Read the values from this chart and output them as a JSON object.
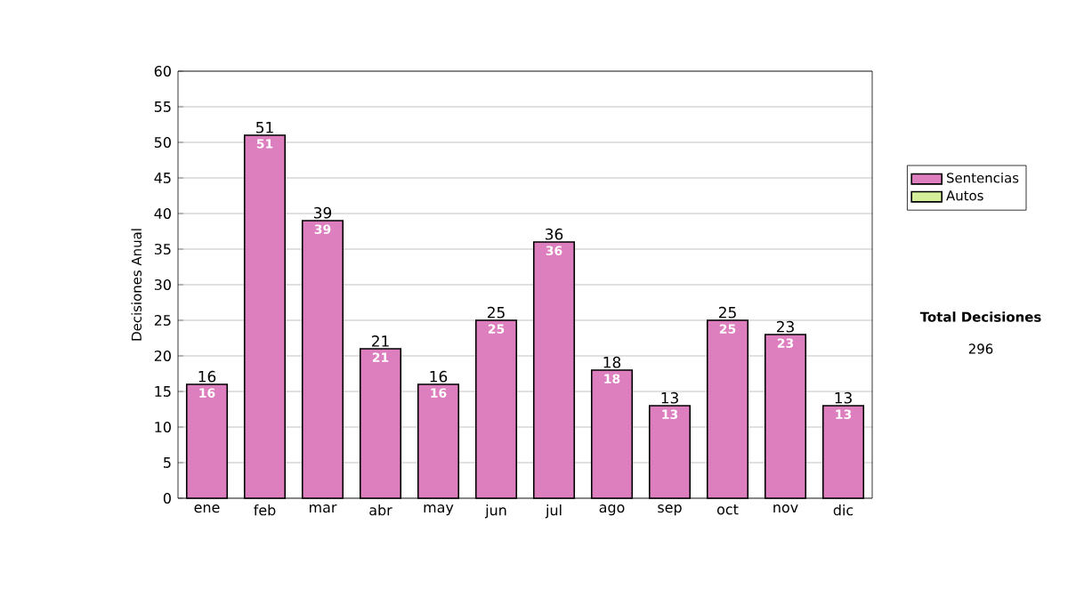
{
  "chart_data": {
    "type": "bar",
    "stacked": true,
    "ylabel": "Decisiones Anual",
    "categories": [
      "ene",
      "feb",
      "mar",
      "abr",
      "may",
      "jun",
      "jul",
      "ago",
      "sep",
      "oct",
      "nov",
      "dic"
    ],
    "series": [
      {
        "name": "Sentencias",
        "color": "#dd7fbe",
        "values": [
          16,
          51,
          39,
          21,
          16,
          25,
          36,
          18,
          13,
          25,
          23,
          13
        ],
        "value_labels": [
          "16",
          "51",
          "39",
          "21",
          "16",
          "25",
          "36",
          "18",
          "13",
          "25",
          "23",
          "13"
        ]
      },
      {
        "name": "Autos",
        "color": "#d4ee9a",
        "values": [
          0,
          0,
          0,
          0,
          0,
          0,
          0,
          0,
          0,
          0,
          0,
          0
        ]
      }
    ],
    "totals": [
      "16",
      "51",
      "39",
      "21",
      "16",
      "25",
      "36",
      "18",
      "13",
      "25",
      "23",
      "13"
    ],
    "ylim": [
      0,
      60
    ],
    "yticks": [
      0,
      5,
      10,
      15,
      20,
      25,
      30,
      35,
      40,
      45,
      50,
      55,
      60
    ],
    "grid": "y",
    "legend": "right",
    "annotations": [
      "Total Decisiones",
      "296"
    ]
  }
}
